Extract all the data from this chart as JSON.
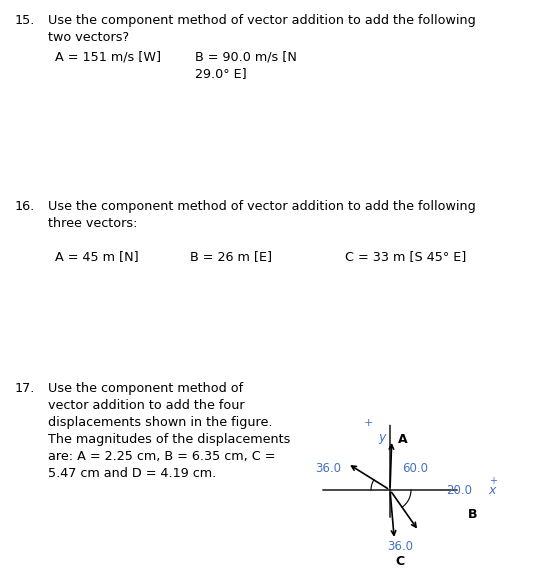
{
  "bg_color": "#ffffff",
  "text_color": "#000000",
  "blue_color": "#4472c4",
  "q15_number": "15.",
  "q15_line1": "Use the component method of vector addition to add the following",
  "q15_line2": "two vectors?",
  "q15_A": "A = 151 m/s [W]",
  "q15_B_line1": "B = 90.0 m/s [N",
  "q15_B_line2": "29.0° E]",
  "q16_number": "16.",
  "q16_line1": "Use the component method of vector addition to add the following",
  "q16_line2": "three vectors:",
  "q16_A": "A = 45 m [N]",
  "q16_B": "B = 26 m [E]",
  "q16_C": "C = 33 m [S 45° E]",
  "q17_number": "17.",
  "q17_line1": "Use the component method of",
  "q17_line2": "vector addition to add the four",
  "q17_line3": "displacements shown in the figure.",
  "q17_line4": "The magnitudes of the displacements",
  "q17_line5": "are: A = 2.25 cm, B = 6.35 cm, C =",
  "q17_line6": "5.47 cm and D = 4.19 cm.",
  "label_36_0_angle": "36.0",
  "label_60_0_angle": "60.0",
  "label_20_0": "20.0",
  "label_36_0_C": "36.0",
  "label_A": "A",
  "label_B": "B",
  "label_C": "C",
  "label_x": "x",
  "label_y": "y",
  "label_plus_y": "+",
  "label_plus_x": "+"
}
